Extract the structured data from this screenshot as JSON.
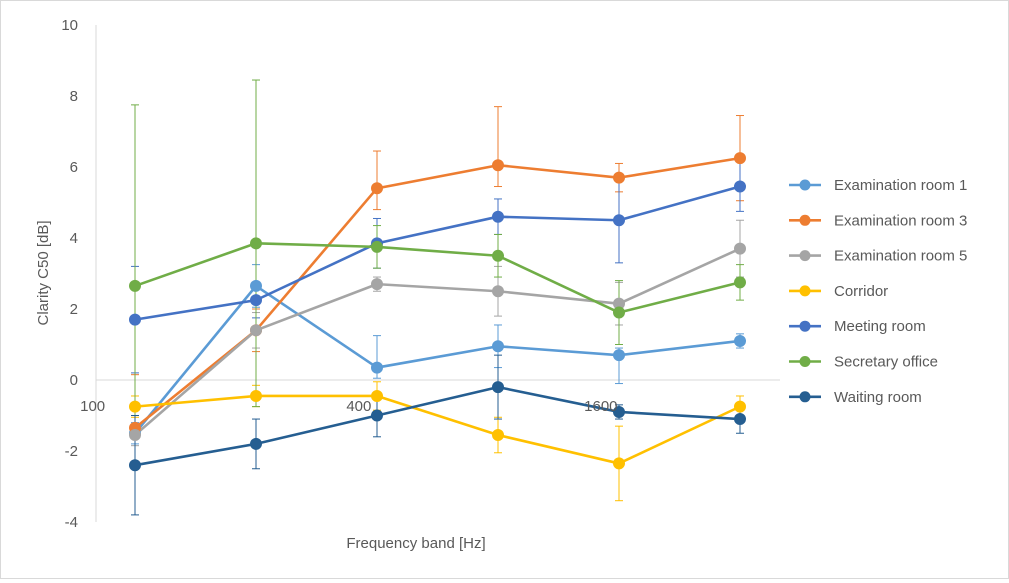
{
  "chart_data": {
    "type": "line",
    "title": "",
    "xlabel": "Frequency band [Hz]",
    "ylabel": "Clarity C50 [dB]",
    "ylim": [
      -4,
      10
    ],
    "y_ticks": [
      -4,
      -2,
      0,
      2,
      4,
      6,
      8,
      10
    ],
    "x_positions": [
      1,
      2,
      3,
      4,
      5,
      6
    ],
    "x_tick_labels": [
      {
        "pos": 0.65,
        "label": "100"
      },
      {
        "pos": 2.85,
        "label": "400"
      },
      {
        "pos": 4.85,
        "label": "1600"
      }
    ],
    "grid": false,
    "legend_position": "right",
    "series": [
      {
        "name": "Examination room 1",
        "color": "#5B9BD5",
        "values": [
          -1.5,
          2.65,
          0.35,
          0.95,
          0.7,
          1.1
        ],
        "err_low": [
          0.3,
          0.6,
          0.3,
          0.6,
          0.8,
          0.2
        ],
        "err_high": [
          0.3,
          0.6,
          0.9,
          0.6,
          0.2,
          0.2
        ]
      },
      {
        "name": "Examination room 3",
        "color": "#ED7D31",
        "values": [
          -1.35,
          1.4,
          5.4,
          6.05,
          5.7,
          6.25
        ],
        "err_low": [
          0.2,
          0.6,
          0.6,
          0.6,
          0.4,
          1.2
        ],
        "err_high": [
          1.5,
          0.6,
          1.05,
          1.65,
          0.4,
          1.2
        ]
      },
      {
        "name": "Examination room 5",
        "color": "#A5A5A5",
        "values": [
          -1.55,
          1.4,
          2.7,
          2.5,
          2.15,
          3.7
        ],
        "err_low": [
          0.3,
          0.5,
          0.2,
          0.7,
          0.6,
          0.8
        ],
        "err_high": [
          0.3,
          0.5,
          0.2,
          0.7,
          0.6,
          0.8
        ]
      },
      {
        "name": "Corridor",
        "color": "#FFC000",
        "values": [
          -0.75,
          -0.45,
          -0.45,
          -1.55,
          -2.35,
          -0.75
        ],
        "err_low": [
          0.3,
          0.3,
          0.4,
          0.5,
          1.05,
          0.3
        ],
        "err_high": [
          0.3,
          0.3,
          0.4,
          0.5,
          1.05,
          0.3
        ]
      },
      {
        "name": "Meeting room",
        "color": "#4472C4",
        "values": [
          1.7,
          2.25,
          3.85,
          4.6,
          4.5,
          5.45
        ],
        "err_low": [
          1.5,
          0.5,
          0.7,
          0.5,
          1.2,
          0.7
        ],
        "err_high": [
          1.5,
          0.5,
          0.7,
          0.5,
          1.2,
          0.7
        ]
      },
      {
        "name": "Secretary office",
        "color": "#70AD47",
        "values": [
          2.65,
          3.85,
          3.75,
          3.5,
          1.9,
          2.75
        ],
        "err_low": [
          5.1,
          4.6,
          0.6,
          0.6,
          0.9,
          0.5
        ],
        "err_high": [
          5.1,
          4.6,
          0.6,
          0.6,
          0.9,
          0.5
        ]
      },
      {
        "name": "Waiting room",
        "color": "#255E91",
        "values": [
          -2.4,
          -1.8,
          -1.0,
          -0.2,
          -0.9,
          -1.1
        ],
        "err_low": [
          1.4,
          0.7,
          0.6,
          0.9,
          0.2,
          0.4
        ],
        "err_high": [
          1.4,
          0.7,
          0.6,
          0.9,
          0.2,
          0.4
        ]
      }
    ]
  }
}
